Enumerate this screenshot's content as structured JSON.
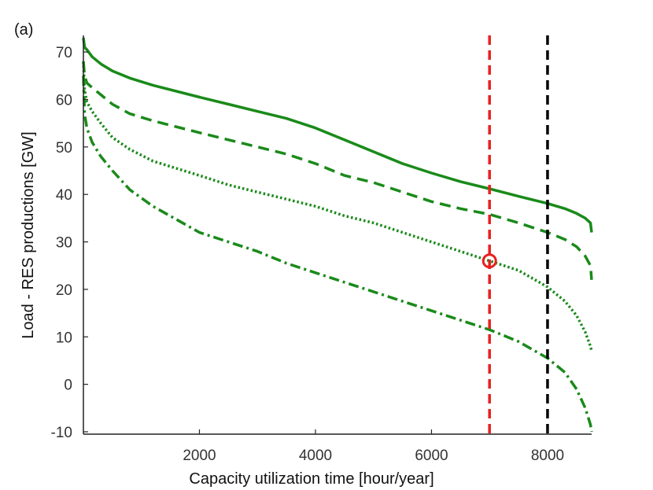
{
  "panel_label": "(a)",
  "chart_data": {
    "type": "line",
    "title": "",
    "xlabel": "Capacity utilization time [hour/year]",
    "ylabel": "Load - RES productions [GW]",
    "xlim": [
      0,
      8760
    ],
    "ylim": [
      -10.5,
      73.5
    ],
    "xticks": [
      2000,
      4000,
      6000,
      8000
    ],
    "yticks": [
      -10,
      0,
      10,
      20,
      30,
      40,
      50,
      60,
      70
    ],
    "grid": false,
    "legend": "none",
    "series": [
      {
        "style": "solid",
        "color": "#1a8a1a",
        "x": [
          0,
          20,
          60,
          150,
          300,
          500,
          800,
          1200,
          2000,
          2500,
          3000,
          3500,
          4000,
          4500,
          5000,
          5500,
          6000,
          6500,
          7000,
          7500,
          8000,
          8300,
          8500,
          8650,
          8740,
          8760
        ],
        "y": [
          73,
          71,
          70.5,
          69,
          67.5,
          66,
          64.5,
          63,
          60.5,
          59,
          57.5,
          56,
          54,
          51.5,
          49,
          46.5,
          44.5,
          42.7,
          41.2,
          39.6,
          38.1,
          37,
          36,
          35,
          34,
          32
        ]
      },
      {
        "style": "dashed",
        "color": "#1a8a1a",
        "x": [
          0,
          20,
          60,
          150,
          300,
          500,
          800,
          1200,
          2000,
          2500,
          3000,
          3500,
          4000,
          4500,
          5000,
          5500,
          6000,
          6500,
          7000,
          7500,
          8000,
          8300,
          8500,
          8650,
          8740,
          8760
        ],
        "y": [
          68,
          65,
          63.5,
          62.5,
          61,
          59,
          57,
          55.5,
          53,
          51.5,
          50,
          48.5,
          46.5,
          44,
          42.5,
          40.5,
          38.5,
          37,
          35.8,
          34,
          32,
          30.5,
          29,
          27,
          25,
          22
        ]
      },
      {
        "style": "dotted",
        "color": "#1a8a1a",
        "x": [
          0,
          20,
          60,
          150,
          300,
          500,
          800,
          1200,
          2000,
          2500,
          3000,
          3500,
          4000,
          4500,
          5000,
          5500,
          6000,
          6500,
          7000,
          7500,
          8000,
          8300,
          8500,
          8650,
          8740,
          8760
        ],
        "y": [
          68,
          62,
          59.5,
          57.5,
          55,
          52,
          49.5,
          47,
          44,
          42,
          40.5,
          39,
          37.5,
          35.5,
          34,
          32,
          30,
          28,
          26,
          24,
          20.5,
          17.5,
          14.5,
          11,
          8,
          7
        ]
      },
      {
        "style": "dash-dot",
        "color": "#1a8a1a",
        "x": [
          0,
          20,
          60,
          150,
          300,
          500,
          800,
          1200,
          2000,
          2500,
          3000,
          3500,
          4000,
          4500,
          5000,
          5500,
          6000,
          6500,
          7000,
          7500,
          8000,
          8300,
          8500,
          8650,
          8740,
          8760
        ],
        "y": [
          65,
          57,
          54,
          51,
          48,
          45,
          41,
          37.5,
          32,
          30,
          28,
          25.5,
          23.5,
          21.5,
          19.5,
          17.5,
          15.5,
          13.5,
          11.5,
          9,
          5.5,
          2.5,
          -1,
          -5,
          -8.5,
          -10
        ]
      }
    ],
    "vlines": [
      {
        "x": 7000,
        "color": "#e8201e",
        "style": "dashed"
      },
      {
        "x": 8000,
        "color": "#000000",
        "style": "dashed"
      }
    ],
    "marker": {
      "x": 7000,
      "y": 26,
      "color": "#e8201e",
      "shape": "open-circle"
    }
  }
}
